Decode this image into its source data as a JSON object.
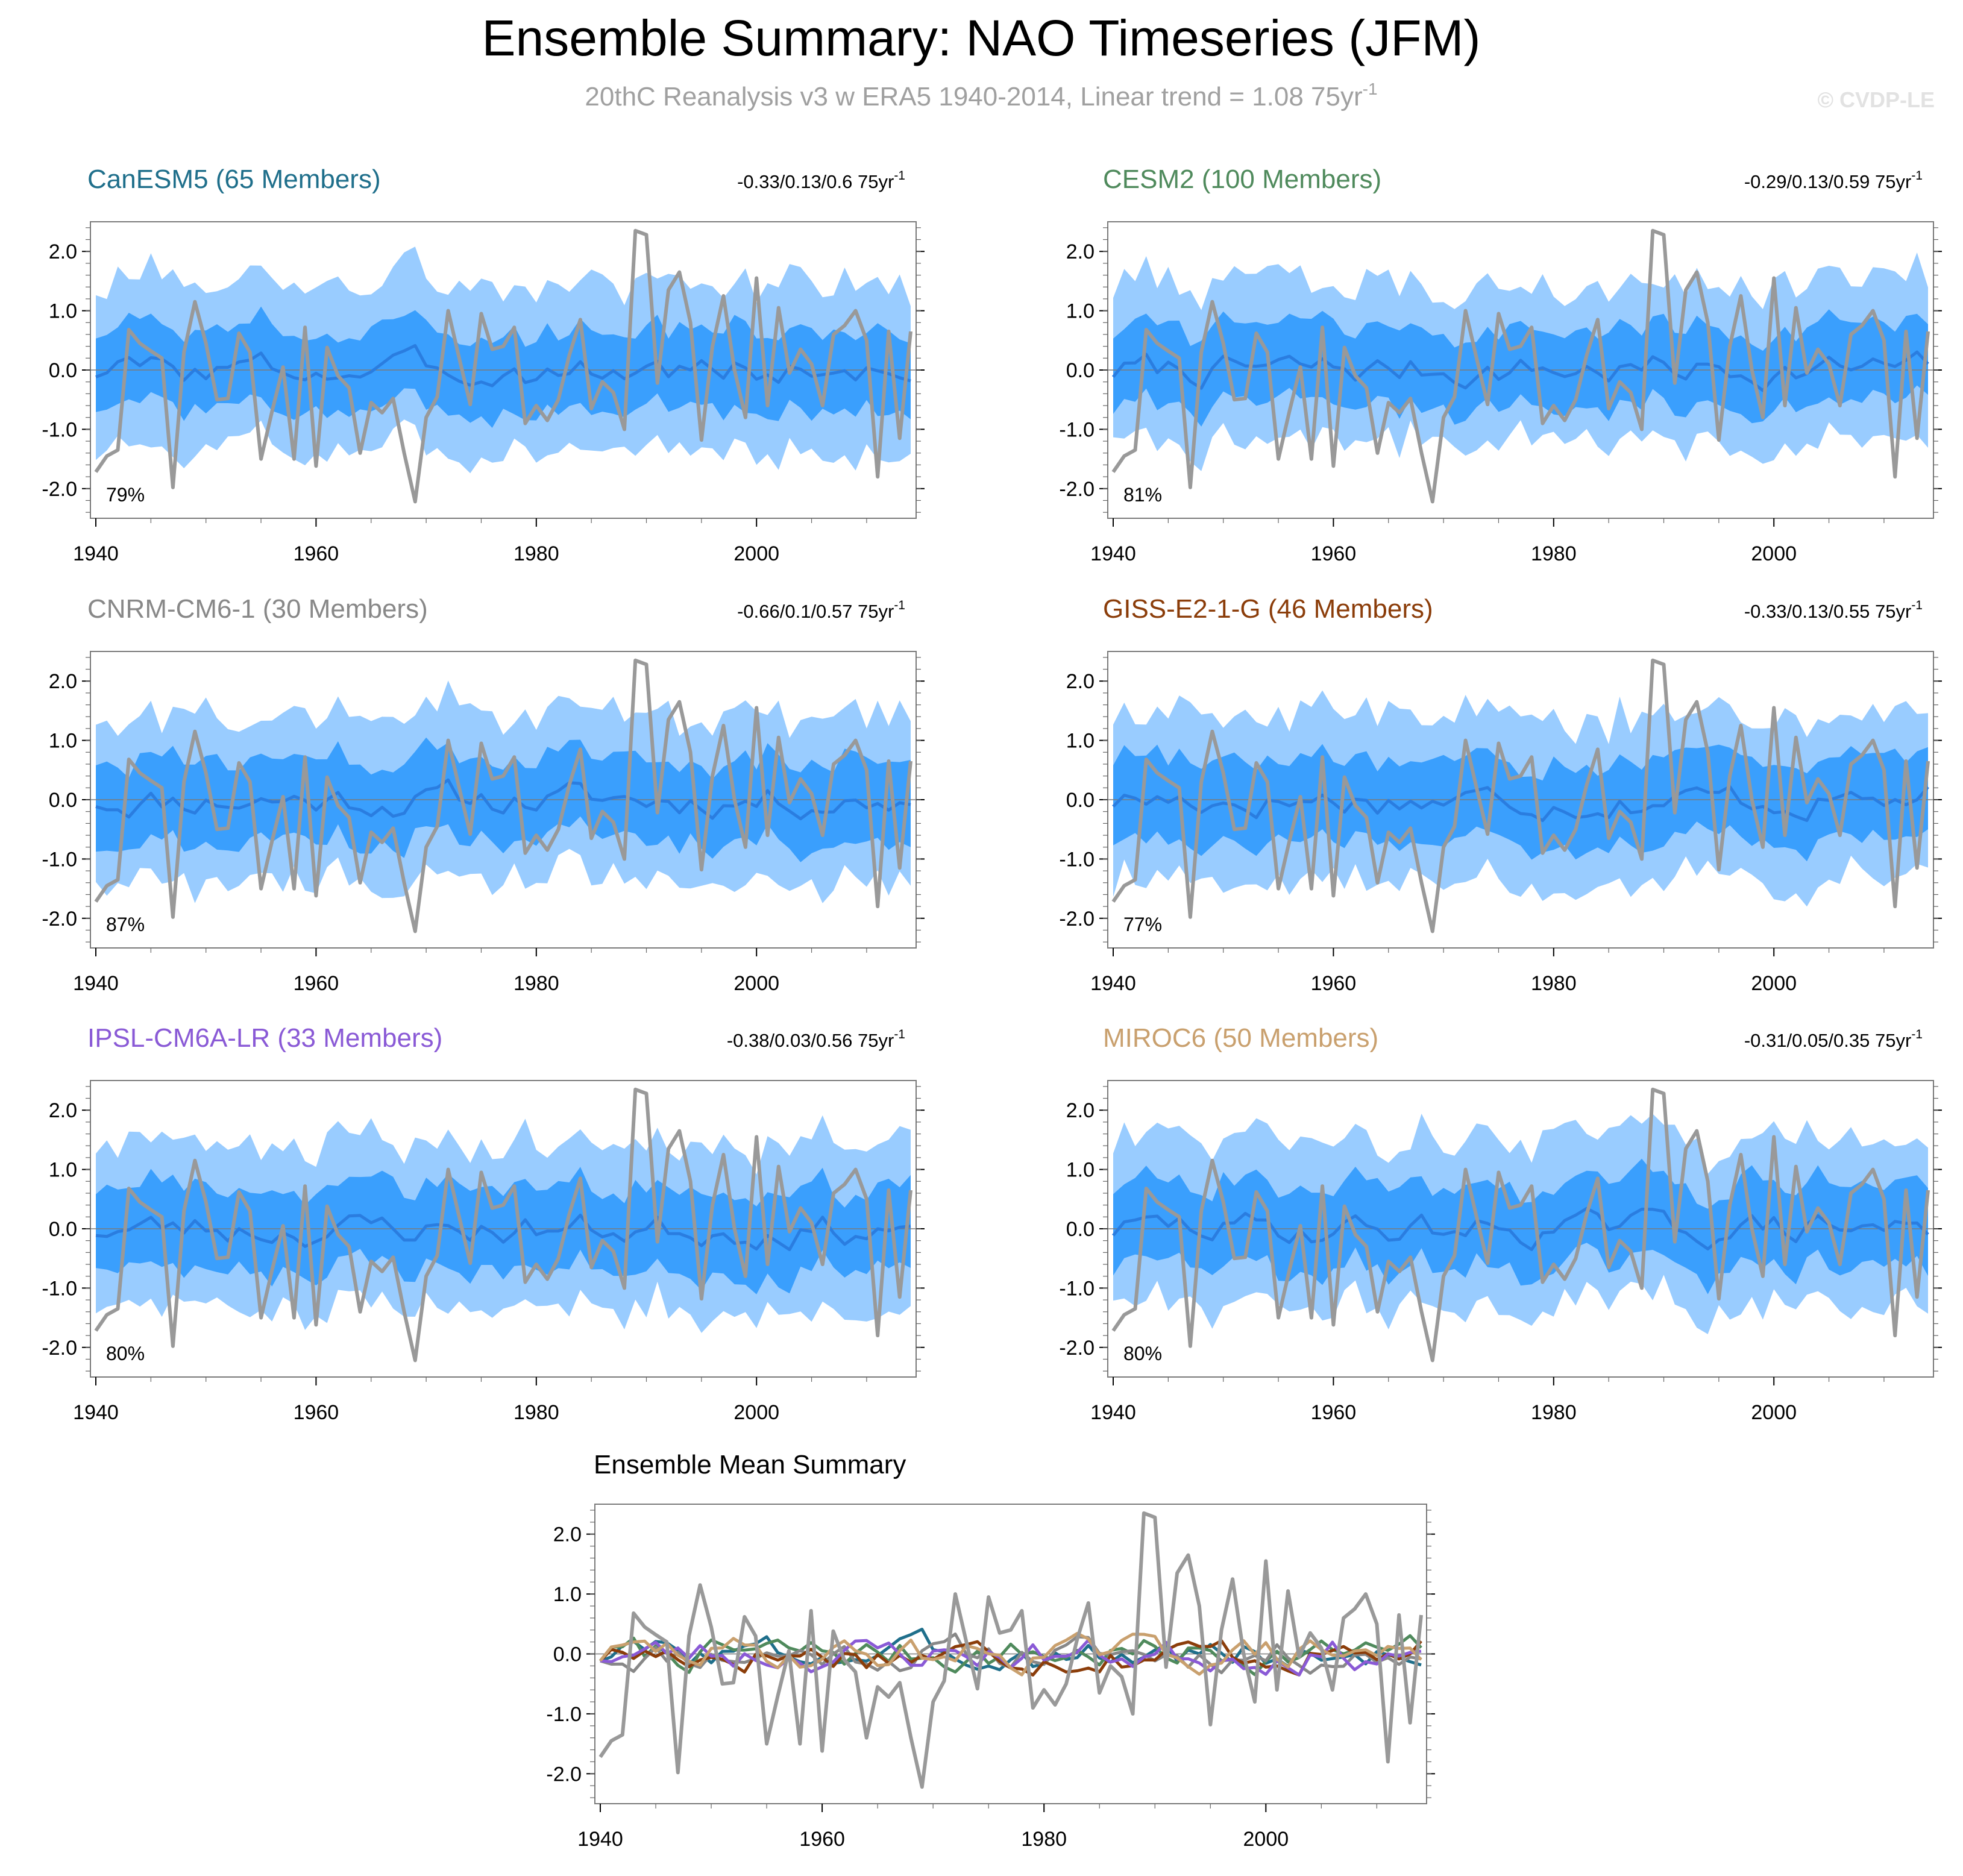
{
  "title": "Ensemble Summary: NAO Timeseries (JFM)",
  "subtitle": "20thC Reanalysis v3 w ERA5 1940-2014, Linear trend = 1.08 75yr",
  "subtitle_exponent": "-1",
  "watermark": "© CVDP-LE",
  "colors": {
    "obs": "#999999",
    "band_outer": "#99ccff",
    "band_inner": "#3a9ffd",
    "ens_mean": "#2a7de0",
    "zero_line": "#7a7a7a"
  },
  "chart_data": [
    {
      "type": "area",
      "title": "CanESM5 (65 Members)",
      "title_color": "#1f6f8b",
      "trend_label": "-0.33/0.13/0.6 75yr",
      "trend_exponent": "-1",
      "pct_label": "79%",
      "x_range": [
        1940,
        2014
      ],
      "ylim": [
        -2.5,
        2.5
      ],
      "x_ticks": [
        "1940",
        "1960",
        "1980",
        "2000"
      ],
      "y_ticks": [
        "2.0",
        "1.0",
        "0.0",
        "-1.0",
        "-2.0"
      ],
      "band_outer": [
        1.5,
        1.3
      ],
      "band_inner": [
        0.7,
        0.65
      ],
      "ens_mean_seed": 3,
      "ens_mean_level": 0.0
    },
    {
      "type": "area",
      "title": "CESM2 (100 Members)",
      "title_color": "#4f8a5c",
      "trend_label": "-0.29/0.13/0.59 75yr",
      "trend_exponent": "-1",
      "pct_label": "81%",
      "x_range": [
        1940,
        2014
      ],
      "ylim": [
        -2.5,
        2.5
      ],
      "x_ticks": [
        "1940",
        "1960",
        "1980",
        "2000"
      ],
      "y_ticks": [
        "2.0",
        "1.0",
        "0.0",
        "-1.0",
        "-2.0"
      ],
      "band_outer": [
        1.45,
        1.2
      ],
      "band_inner": [
        0.7,
        0.6
      ],
      "ens_mean_seed": 7,
      "ens_mean_level": 0.0
    },
    {
      "type": "area",
      "title": "CNRM-CM6-1 (30 Members)",
      "title_color": "#888888",
      "trend_label": "-0.66/0.1/0.57 75yr",
      "trend_exponent": "-1",
      "pct_label": "87%",
      "x_range": [
        1940,
        2014
      ],
      "ylim": [
        -2.5,
        2.5
      ],
      "x_ticks": [
        "1940",
        "1960",
        "1980",
        "2000"
      ],
      "y_ticks": [
        "2.0",
        "1.0",
        "0.0",
        "-1.0",
        "-2.0"
      ],
      "band_outer": [
        1.5,
        1.3
      ],
      "band_inner": [
        0.75,
        0.65
      ],
      "ens_mean_seed": 11,
      "ens_mean_level": 0.0
    },
    {
      "type": "area",
      "title": "GISS-E2-1-G (46 Members)",
      "title_color": "#8b3d0a",
      "trend_label": "-0.33/0.13/0.55 75yr",
      "trend_exponent": "-1",
      "pct_label": "77%",
      "x_range": [
        1940,
        2014
      ],
      "ylim": [
        -2.5,
        2.5
      ],
      "x_ticks": [
        "1940",
        "1960",
        "1980",
        "2000"
      ],
      "y_ticks": [
        "2.0",
        "1.0",
        "0.0",
        "-1.0",
        "-2.0"
      ],
      "band_outer": [
        1.5,
        1.3
      ],
      "band_inner": [
        0.75,
        0.65
      ],
      "ens_mean_seed": 17,
      "ens_mean_level": 0.0
    },
    {
      "type": "area",
      "title": "IPSL-CM6A-LR (33 Members)",
      "title_color": "#8a5ad6",
      "trend_label": "-0.38/0.03/0.56 75yr",
      "trend_exponent": "-1",
      "pct_label": "80%",
      "x_range": [
        1940,
        2014
      ],
      "ylim": [
        -2.5,
        2.5
      ],
      "x_ticks": [
        "1940",
        "1960",
        "1980",
        "2000"
      ],
      "y_ticks": [
        "2.0",
        "1.0",
        "0.0",
        "-1.0",
        "-2.0"
      ],
      "band_outer": [
        1.5,
        1.3
      ],
      "band_inner": [
        0.75,
        0.65
      ],
      "ens_mean_seed": 23,
      "ens_mean_level": 0.0
    },
    {
      "type": "area",
      "title": "MIROC6 (50 Members)",
      "title_color": "#c9a06e",
      "trend_label": "-0.31/0.05/0.35 75yr",
      "trend_exponent": "-1",
      "pct_label": "80%",
      "x_range": [
        1940,
        2014
      ],
      "ylim": [
        -2.5,
        2.5
      ],
      "x_ticks": [
        "1940",
        "1960",
        "1980",
        "2000"
      ],
      "y_ticks": [
        "2.0",
        "1.0",
        "0.0",
        "-1.0",
        "-2.0"
      ],
      "band_outer": [
        1.5,
        1.3
      ],
      "band_inner": [
        0.75,
        0.65
      ],
      "ens_mean_seed": 29,
      "ens_mean_level": 0.0
    },
    {
      "type": "line",
      "title": "Ensemble Mean Summary",
      "title_color": "#000000",
      "x_range": [
        1940,
        2014
      ],
      "ylim": [
        -2.5,
        2.5
      ],
      "x_ticks": [
        "1940",
        "1960",
        "1980",
        "2000"
      ],
      "y_ticks": [
        "2.0",
        "1.0",
        "0.0",
        "-1.0",
        "-2.0"
      ],
      "series": [
        {
          "name": "CanESM5",
          "color": "#1f6f8b",
          "seed": 3
        },
        {
          "name": "CESM2",
          "color": "#4f8a5c",
          "seed": 7
        },
        {
          "name": "CNRM-CM6-1",
          "color": "#888888",
          "seed": 11
        },
        {
          "name": "GISS-E2-1-G",
          "color": "#8b3d0a",
          "seed": 17
        },
        {
          "name": "IPSL-CM6A-LR",
          "color": "#8a5ad6",
          "seed": 23
        },
        {
          "name": "MIROC6",
          "color": "#c9a06e",
          "seed": 29
        }
      ]
    }
  ],
  "observations": {
    "name": "20thC Reanalysis v3 w ERA5",
    "years": [
      1940,
      1941,
      1942,
      1943,
      1944,
      1945,
      1946,
      1947,
      1948,
      1949,
      1950,
      1951,
      1952,
      1953,
      1954,
      1955,
      1956,
      1957,
      1958,
      1959,
      1960,
      1961,
      1962,
      1963,
      1964,
      1965,
      1966,
      1967,
      1968,
      1969,
      1970,
      1971,
      1972,
      1973,
      1974,
      1975,
      1976,
      1977,
      1978,
      1979,
      1980,
      1981,
      1982,
      1983,
      1984,
      1985,
      1986,
      1987,
      1988,
      1989,
      1990,
      1991,
      1992,
      1993,
      1994,
      1995,
      1996,
      1997,
      1998,
      1999,
      2000,
      2001,
      2002,
      2003,
      2004,
      2005,
      2006,
      2007,
      2008,
      2009,
      2010,
      2011,
      2012,
      2013,
      2014
    ],
    "values": [
      -1.72,
      -1.45,
      -1.35,
      0.68,
      0.45,
      0.32,
      0.2,
      -1.98,
      0.3,
      1.15,
      0.45,
      -0.5,
      -0.48,
      0.62,
      0.3,
      -1.5,
      -0.7,
      0.05,
      -1.5,
      0.72,
      -1.62,
      0.38,
      -0.1,
      -0.3,
      -1.4,
      -0.55,
      -0.72,
      -0.48,
      -1.4,
      -2.22,
      -0.8,
      -0.45,
      1.0,
      0.2,
      -0.58,
      0.95,
      0.35,
      0.4,
      0.72,
      -0.9,
      -0.6,
      -0.85,
      -0.5,
      0.25,
      0.85,
      -0.65,
      -0.2,
      -0.38,
      -1.0,
      2.35,
      2.28,
      -0.22,
      1.35,
      1.65,
      0.8,
      -1.18,
      0.4,
      1.25,
      0.0,
      -0.8,
      1.55,
      -0.6,
      1.05,
      -0.05,
      0.35,
      0.1,
      -0.6,
      0.6,
      0.75,
      1.0,
      0.5,
      -1.8,
      0.65,
      -1.15,
      0.65
    ]
  }
}
